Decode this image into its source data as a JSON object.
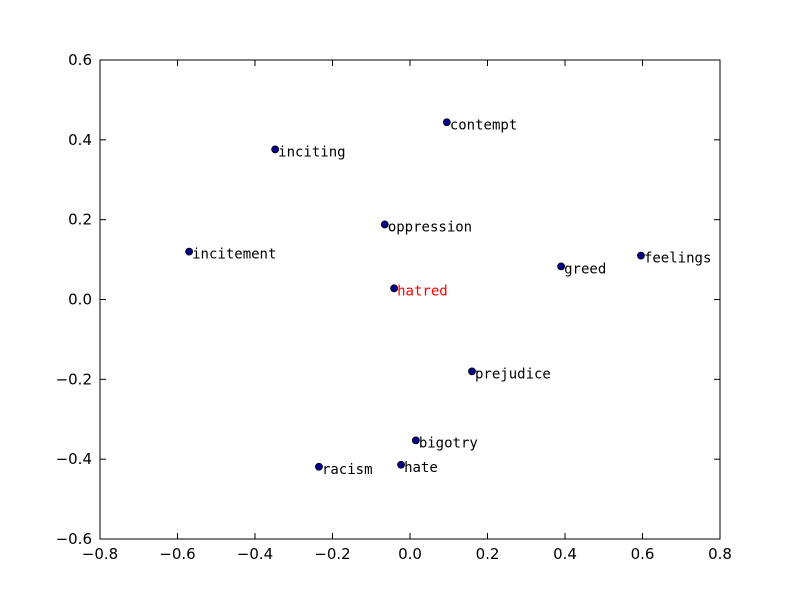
{
  "chart_data": {
    "type": "scatter",
    "labels": [
      "contempt",
      "inciting",
      "oppression",
      "incitement",
      "greed",
      "feelings",
      "hatred",
      "prejudice",
      "bigotry",
      "hate",
      "racism"
    ],
    "x": [
      0.095,
      -0.348,
      -0.065,
      -0.57,
      0.39,
      0.596,
      -0.041,
      0.16,
      0.015,
      -0.023,
      -0.235
    ],
    "values": [
      0.444,
      0.376,
      0.188,
      0.12,
      0.083,
      0.11,
      0.028,
      -0.18,
      -0.353,
      -0.414,
      -0.419
    ],
    "color": "#00008b",
    "label_colors": [
      "#000000",
      "#000000",
      "#000000",
      "#000000",
      "#000000",
      "#000000",
      "#ff0000",
      "#000000",
      "#000000",
      "#000000",
      "#000000"
    ],
    "xlim": [
      -0.8,
      0.8
    ],
    "ylim": [
      -0.6,
      0.6
    ],
    "xticks": [
      {
        "value": -0.8,
        "label": "−0.8"
      },
      {
        "value": -0.6,
        "label": "−0.6"
      },
      {
        "value": -0.4,
        "label": "−0.4"
      },
      {
        "value": -0.2,
        "label": "−0.2"
      },
      {
        "value": 0,
        "label": "0.0"
      },
      0.2,
      0.4,
      0.6,
      0.8
    ],
    "yticks": [
      {
        "value": -0.6,
        "label": "−0.6"
      },
      {
        "value": -0.4,
        "label": "−0.4"
      },
      {
        "value": -0.2,
        "label": "−0.2"
      },
      {
        "value": 0,
        "label": "0.0"
      },
      0.2,
      0.4,
      0.6
    ]
  }
}
